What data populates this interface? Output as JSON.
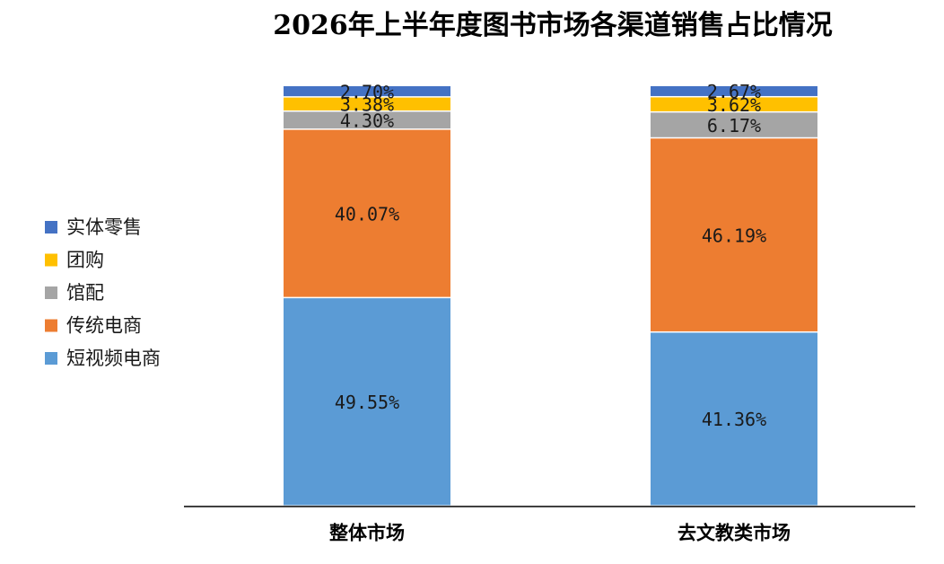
{
  "chart_data": {
    "type": "bar",
    "stacked": true,
    "title": "2026年上半年度图书市场各渠道销售占比情况",
    "categories": [
      "整体市场",
      "去文教类市场"
    ],
    "series": [
      {
        "name": "短视频电商",
        "color": "#5b9bd5",
        "values": [
          49.55,
          41.36
        ],
        "labels": [
          "49.55%",
          "41.36%"
        ]
      },
      {
        "name": "传统电商",
        "color": "#ed7d31",
        "values": [
          40.07,
          46.19
        ],
        "labels": [
          "40.07%",
          "46.19%"
        ]
      },
      {
        "name": "馆配",
        "color": "#a5a5a5",
        "values": [
          4.3,
          6.17
        ],
        "labels": [
          "4.30%",
          "6.17%"
        ]
      },
      {
        "name": "团购",
        "color": "#ffc000",
        "values": [
          3.38,
          3.62
        ],
        "labels": [
          "3.38%",
          "3.62%"
        ]
      },
      {
        "name": "实体零售",
        "color": "#4472c4",
        "values": [
          2.7,
          2.67
        ],
        "labels": [
          "2.70%",
          "2.67%"
        ]
      }
    ],
    "legend_order": [
      "实体零售",
      "团购",
      "馆配",
      "传统电商",
      "短视频电商"
    ],
    "legend_position": "left",
    "ylim": [
      0,
      100
    ],
    "y_axis_visible": false,
    "grid": false
  }
}
